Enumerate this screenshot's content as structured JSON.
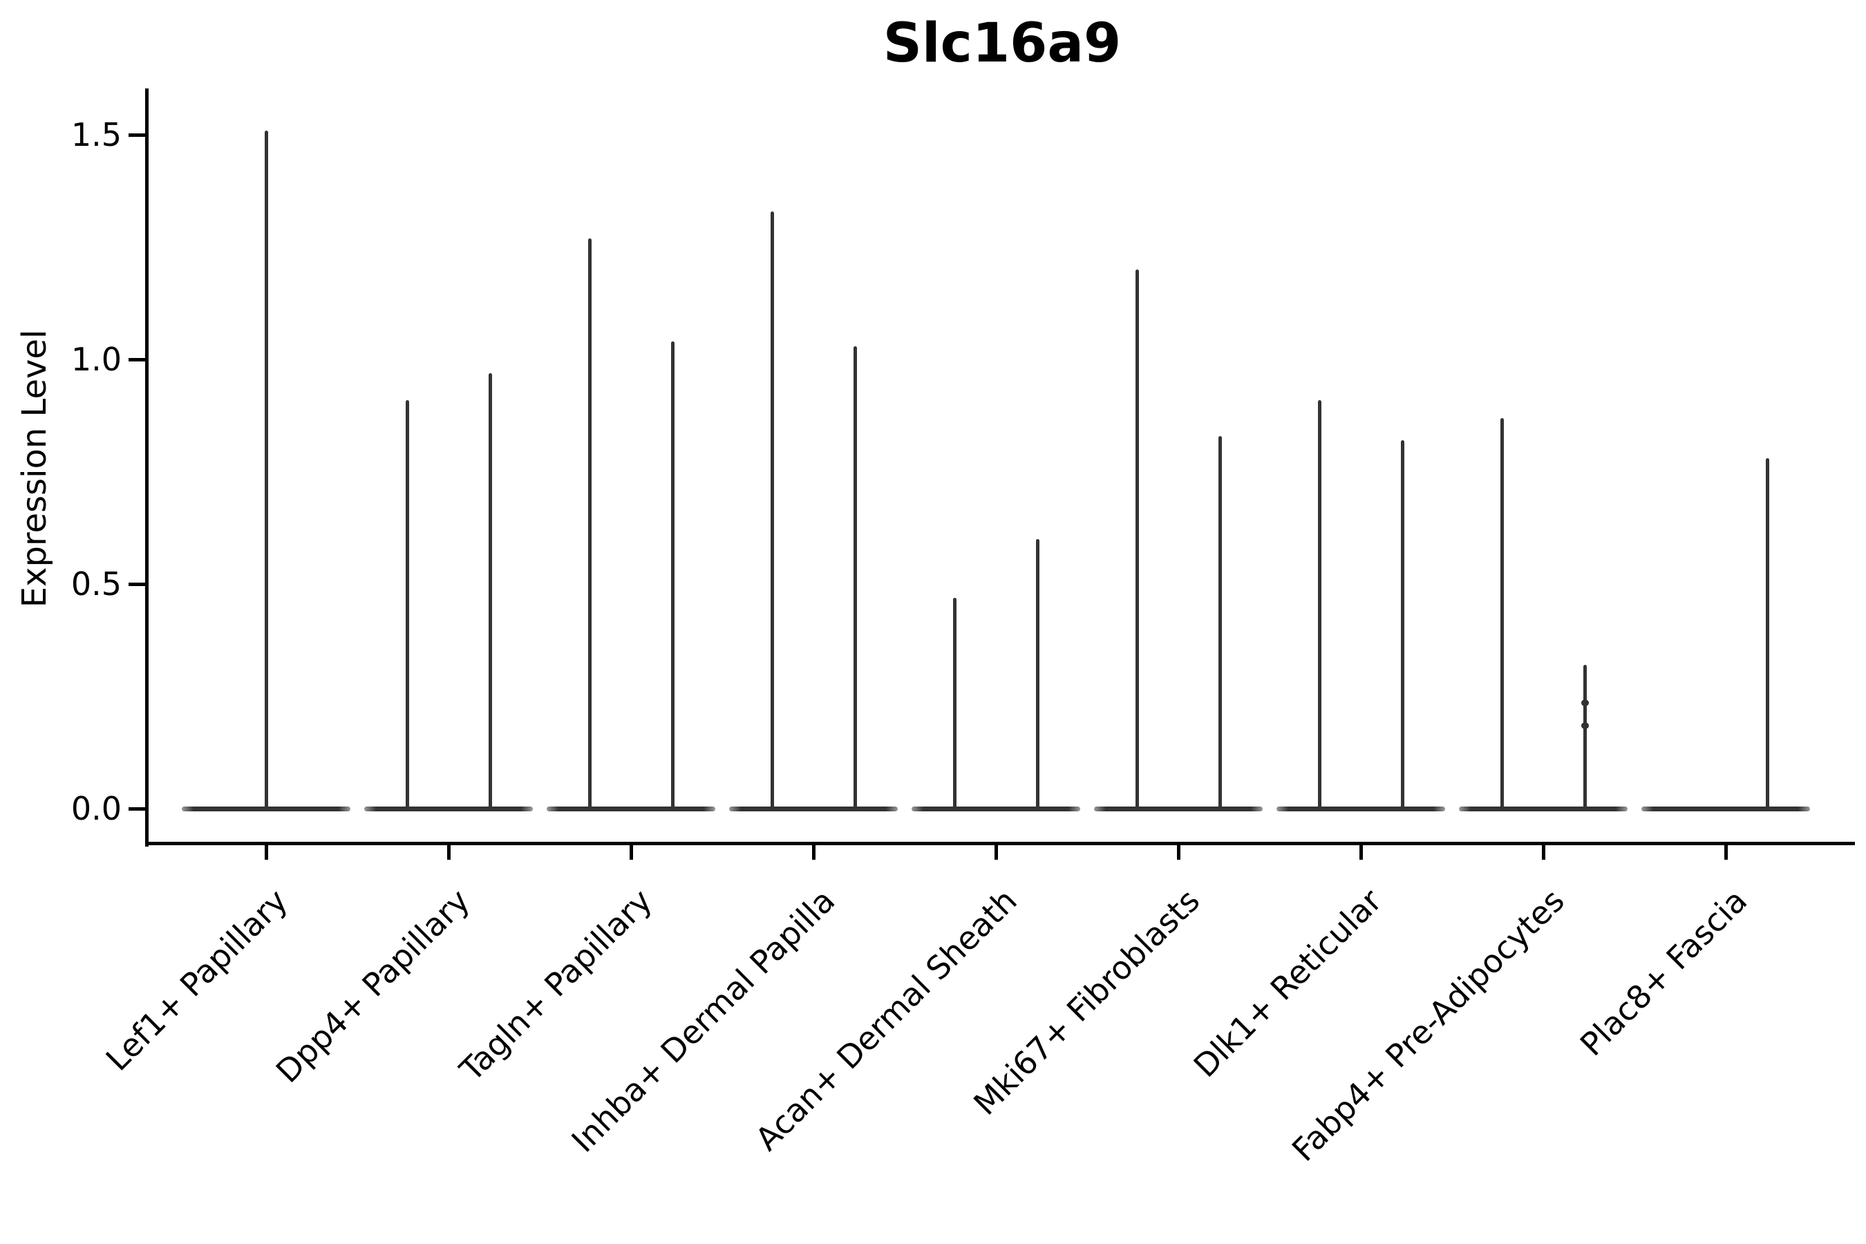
{
  "chart_data": {
    "type": "violin",
    "title": "Slc16a9",
    "xlabel": "",
    "ylabel": "Expression Level",
    "yticks": [
      0.0,
      0.5,
      1.0,
      1.5
    ],
    "ytick_labels": [
      "0.0",
      "0.5",
      "1.0",
      "1.5"
    ],
    "ylim": [
      -0.08,
      1.6
    ],
    "grid": false,
    "legend": "none",
    "stroke_color": "#333333",
    "axis_color": "#000000",
    "background_color": "#ffffff",
    "note": "Each violin collapses to a flat base at expression 0 with a thin spike up to its maximum value",
    "categories": [
      "Lef1+ Papillary",
      "Dpp4+ Papillary",
      "Tagln+ Papillary",
      "Inhba+ Dermal Papilla",
      "Acan+ Dermal Sheath",
      "Mki67+ Fibroblasts",
      "Dlk1+ Reticular",
      "Fabp4+ Pre-Adipocytes",
      "Plac8+ Fascia"
    ],
    "groups": [
      {
        "label": "Lef1+ Papillary",
        "violins": [
          {
            "pos": "center",
            "max": 1.51
          }
        ]
      },
      {
        "label": "Dpp4+ Papillary",
        "violins": [
          {
            "pos": "left",
            "max": 0.91
          },
          {
            "pos": "right",
            "max": 0.97
          }
        ]
      },
      {
        "label": "Tagln+ Papillary",
        "violins": [
          {
            "pos": "left",
            "max": 1.27
          },
          {
            "pos": "right",
            "max": 1.04
          }
        ]
      },
      {
        "label": "Inhba+ Dermal Papilla",
        "violins": [
          {
            "pos": "left",
            "max": 1.33
          },
          {
            "pos": "right",
            "max": 1.03
          }
        ]
      },
      {
        "label": "Acan+ Dermal Sheath",
        "violins": [
          {
            "pos": "left",
            "max": 0.47
          },
          {
            "pos": "right",
            "max": 0.6
          }
        ]
      },
      {
        "label": "Mki67+ Fibroblasts",
        "violins": [
          {
            "pos": "left",
            "max": 1.2
          },
          {
            "pos": "right",
            "max": 0.83
          }
        ]
      },
      {
        "label": "Dlk1+ Reticular",
        "violins": [
          {
            "pos": "left",
            "max": 0.91
          },
          {
            "pos": "right",
            "max": 0.82
          }
        ]
      },
      {
        "label": "Fabp4+ Pre-Adipocytes",
        "violins": [
          {
            "pos": "left",
            "max": 0.87
          },
          {
            "pos": "right",
            "max": 0.32,
            "bumps": [
              0.235,
              0.185
            ]
          }
        ]
      },
      {
        "label": "Plac8+ Fascia",
        "violins": [
          {
            "pos": "right",
            "max": 0.78
          }
        ]
      }
    ]
  }
}
